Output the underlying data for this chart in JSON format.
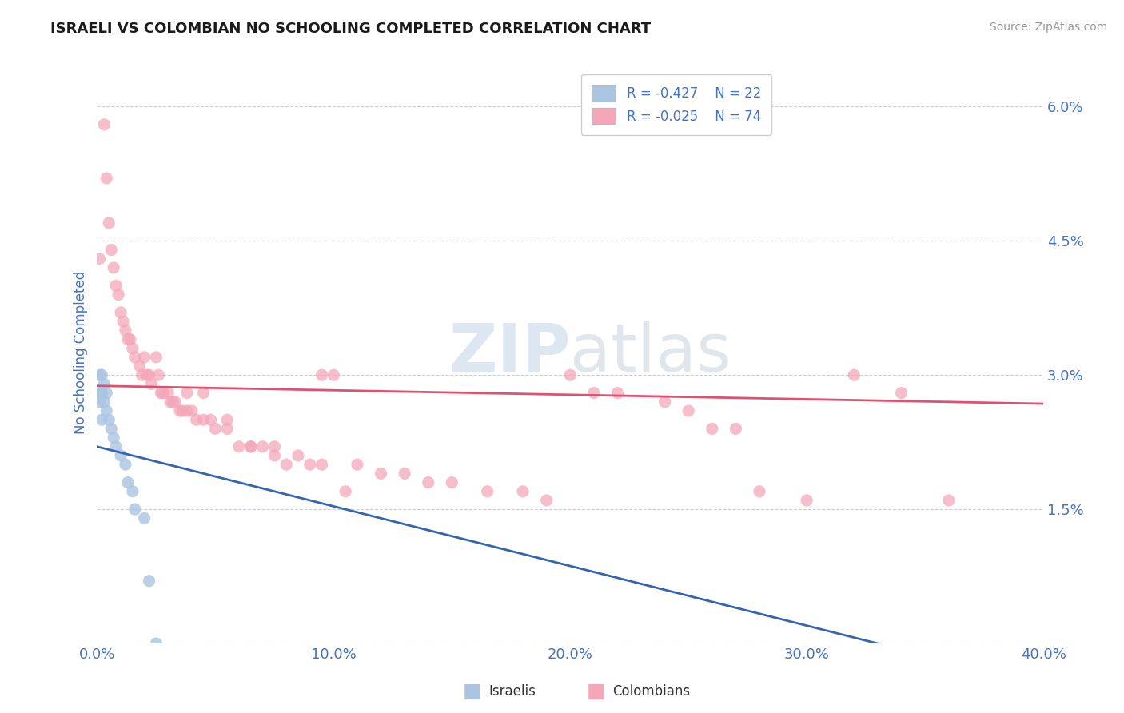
{
  "title": "ISRAELI VS COLOMBIAN NO SCHOOLING COMPLETED CORRELATION CHART",
  "source": "Source: ZipAtlas.com",
  "ylabel": "No Schooling Completed",
  "xlim": [
    0.0,
    0.4
  ],
  "ylim": [
    0.0,
    0.065
  ],
  "xtick_vals": [
    0.0,
    0.1,
    0.2,
    0.3,
    0.4
  ],
  "xticklabels": [
    "0.0%",
    "10.0%",
    "20.0%",
    "30.0%",
    "40.0%"
  ],
  "ytick_vals": [
    0.0,
    0.015,
    0.03,
    0.045,
    0.06
  ],
  "yticklabels": [
    "",
    "1.5%",
    "3.0%",
    "4.5%",
    "6.0%"
  ],
  "israeli_color": "#aac4e2",
  "colombian_color": "#f4a7b9",
  "israeli_line_color": "#3465b0",
  "colombian_line_color": "#e05070",
  "legend_text1": "R = -0.427    N = 22",
  "legend_text2": "R = -0.025    N = 74",
  "watermark": "ZIPatlas",
  "title_color": "#1a1a1a",
  "axis_label_color": "#4472c4",
  "tick_color": "#4472c4",
  "israeli_x": [
    0.001,
    0.001,
    0.001,
    0.002,
    0.002,
    0.002,
    0.003,
    0.003,
    0.004,
    0.004,
    0.005,
    0.006,
    0.007,
    0.008,
    0.01,
    0.012,
    0.013,
    0.015,
    0.016,
    0.02,
    0.022,
    0.025
  ],
  "israeli_y": [
    0.03,
    0.028,
    0.027,
    0.03,
    0.028,
    0.025,
    0.029,
    0.027,
    0.028,
    0.026,
    0.025,
    0.024,
    0.023,
    0.022,
    0.021,
    0.02,
    0.018,
    0.017,
    0.015,
    0.014,
    0.007,
    0.0
  ],
  "colombian_x": [
    0.001,
    0.003,
    0.004,
    0.005,
    0.006,
    0.007,
    0.008,
    0.009,
    0.01,
    0.011,
    0.012,
    0.013,
    0.014,
    0.015,
    0.016,
    0.018,
    0.019,
    0.02,
    0.021,
    0.022,
    0.023,
    0.025,
    0.026,
    0.027,
    0.028,
    0.03,
    0.031,
    0.032,
    0.033,
    0.035,
    0.036,
    0.038,
    0.04,
    0.042,
    0.045,
    0.048,
    0.05,
    0.055,
    0.06,
    0.065,
    0.07,
    0.075,
    0.08,
    0.09,
    0.095,
    0.1,
    0.11,
    0.12,
    0.13,
    0.14,
    0.15,
    0.165,
    0.18,
    0.19,
    0.2,
    0.21,
    0.22,
    0.24,
    0.25,
    0.26,
    0.27,
    0.28,
    0.3,
    0.32,
    0.34,
    0.36,
    0.038,
    0.045,
    0.055,
    0.065,
    0.075,
    0.085,
    0.095,
    0.105
  ],
  "colombian_y": [
    0.043,
    0.058,
    0.052,
    0.047,
    0.044,
    0.042,
    0.04,
    0.039,
    0.037,
    0.036,
    0.035,
    0.034,
    0.034,
    0.033,
    0.032,
    0.031,
    0.03,
    0.032,
    0.03,
    0.03,
    0.029,
    0.032,
    0.03,
    0.028,
    0.028,
    0.028,
    0.027,
    0.027,
    0.027,
    0.026,
    0.026,
    0.026,
    0.026,
    0.025,
    0.025,
    0.025,
    0.024,
    0.024,
    0.022,
    0.022,
    0.022,
    0.021,
    0.02,
    0.02,
    0.02,
    0.03,
    0.02,
    0.019,
    0.019,
    0.018,
    0.018,
    0.017,
    0.017,
    0.016,
    0.03,
    0.028,
    0.028,
    0.027,
    0.026,
    0.024,
    0.024,
    0.017,
    0.016,
    0.03,
    0.028,
    0.016,
    0.028,
    0.028,
    0.025,
    0.022,
    0.022,
    0.021,
    0.03,
    0.017
  ],
  "isr_line_x": [
    0.0,
    0.33
  ],
  "isr_line_y": [
    0.022,
    0.0
  ],
  "col_line_x": [
    0.0,
    0.4
  ],
  "col_line_y": [
    0.0288,
    0.0268
  ]
}
